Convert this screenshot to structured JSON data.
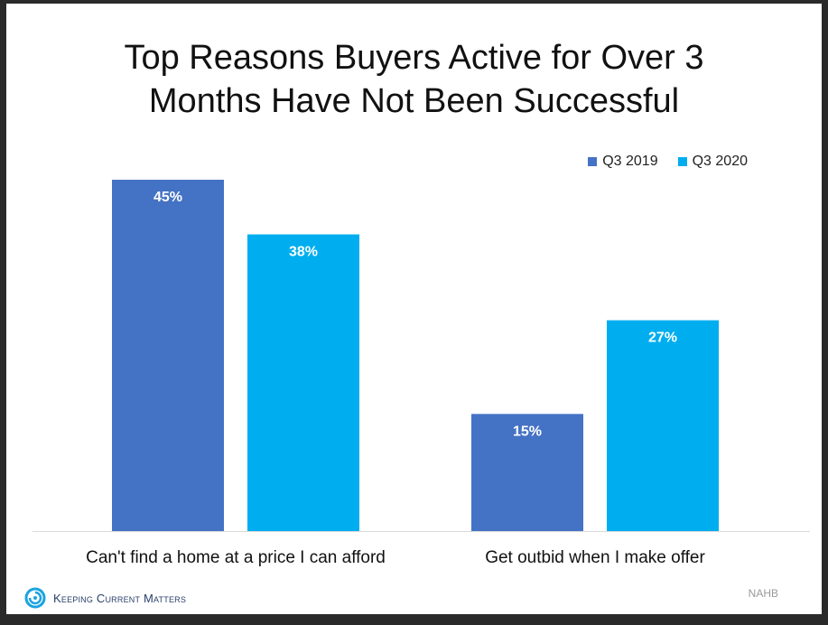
{
  "title_line1": "Top Reasons Buyers Active for Over 3",
  "title_line2": "Months Have Not Been Successful",
  "source": "NAHB",
  "logo": {
    "text": "Keeping Current Matters",
    "icon": "swirl-logo-icon"
  },
  "colors": {
    "q3_2019": "#4472C4",
    "q3_2020": "#00AEEF"
  },
  "chart_data": {
    "type": "bar",
    "categories": [
      "Can't find a home at a price I can afford",
      "Get outbid when I make offer"
    ],
    "series": [
      {
        "name": "Q3 2019",
        "values": [
          45,
          15
        ]
      },
      {
        "name": "Q3 2020",
        "values": [
          38,
          27
        ]
      }
    ],
    "data_labels": [
      [
        "45%",
        "15%"
      ],
      [
        "38%",
        "27%"
      ]
    ],
    "ylim": [
      0,
      45
    ],
    "legend": "top-right",
    "grid": false
  }
}
